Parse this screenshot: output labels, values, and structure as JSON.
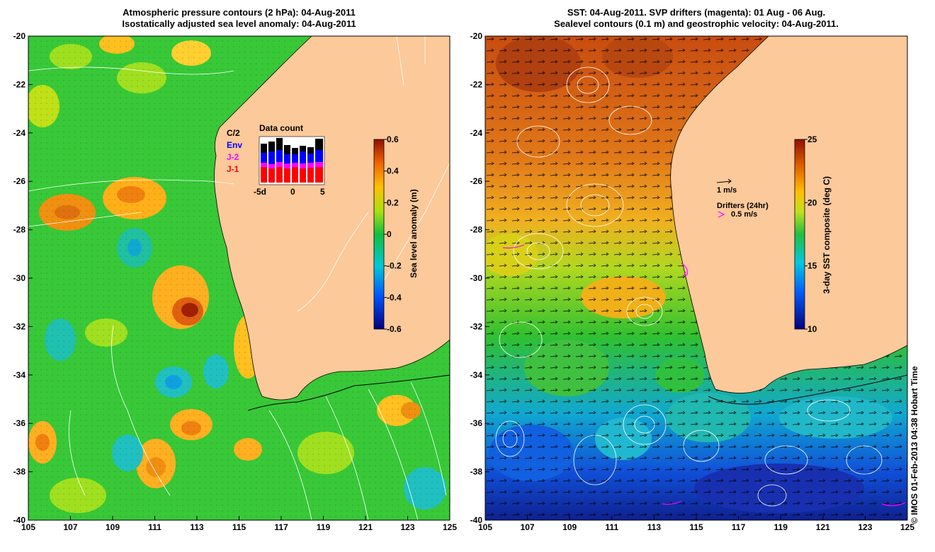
{
  "left_panel": {
    "title_line1": "Atmospheric pressure contours (2 hPa): 04-Aug-2011",
    "title_line2": "Isostatically adjusted sea level anomaly: 04-Aug-2011",
    "colorbar_label": "Sea level anomaly (m)",
    "colorbar_ticks": [
      "0.6",
      "0.4",
      "0.2",
      "0",
      "-0.2",
      "-0.4",
      "-0.6"
    ],
    "inset": {
      "title": "Data count",
      "legend": [
        {
          "label": "C/2",
          "color": "#000000"
        },
        {
          "label": "Env",
          "color": "#0000ff"
        },
        {
          "label": "J-2",
          "color": "#ff00ff"
        },
        {
          "label": "J-1",
          "color": "#ff0000"
        }
      ],
      "x_ticks": [
        "-5d",
        "0",
        "5"
      ]
    }
  },
  "right_panel": {
    "title_line1": "SST: 04-Aug-2011. SVP drifters (magenta): 01 Aug - 06 Aug.",
    "title_line2": "Sealevel contours (0.1 m) and geostrophic velocity: 04-Aug-2011.",
    "colorbar_label": "3-day SST composite (deg C)",
    "colorbar_ticks": [
      "25",
      "20",
      "15",
      "10"
    ],
    "velocity_scale_label": "1 m/s",
    "drifters_label": "Drifters (24hr)",
    "drifters_speed_label": "0.5 m/s"
  },
  "axes": {
    "x_ticks": [
      "105",
      "107",
      "109",
      "111",
      "113",
      "115",
      "117",
      "119",
      "121",
      "123",
      "125"
    ],
    "y_ticks": [
      "-20",
      "-22",
      "-24",
      "-26",
      "-28",
      "-30",
      "-32",
      "-34",
      "-36",
      "-38",
      "-40"
    ]
  },
  "credit": "© IMOS 01-Feb-2013 04:38 Hobart Time",
  "colors": {
    "land": "#fcc99a",
    "sla_ocean": "#2ec82e",
    "sst_warm": "#d06010",
    "sst_cold": "#1040c0"
  }
}
